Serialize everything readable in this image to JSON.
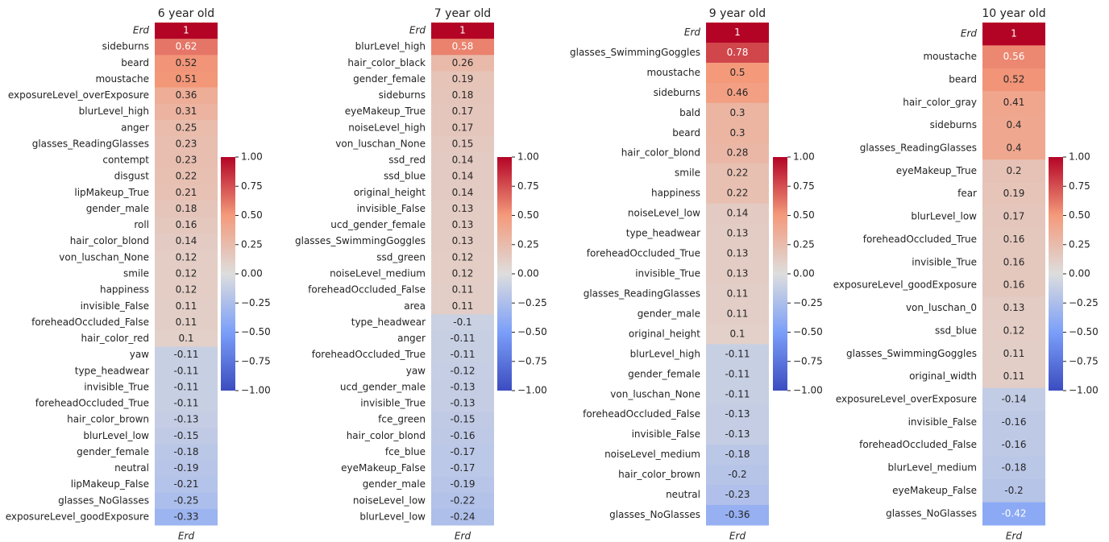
{
  "chart_data": [
    {
      "type": "heatmap",
      "title": "6 year old",
      "colormap": "coolwarm",
      "clim": [
        -1,
        1
      ],
      "cticks": [
        {
          "value": 1,
          "label": "1.00"
        },
        {
          "value": 0.75,
          "label": "0.75"
        },
        {
          "value": 0.5,
          "label": "0.50"
        },
        {
          "value": 0.25,
          "label": "0.25"
        },
        {
          "value": 0,
          "label": "0.00"
        },
        {
          "value": -0.25,
          "label": "−0.25"
        },
        {
          "value": -0.5,
          "label": "−0.50"
        },
        {
          "value": -0.75,
          "label": "−0.75"
        },
        {
          "value": -1,
          "label": "−1.00"
        }
      ],
      "columns": [
        "Erd"
      ],
      "rows": [
        "Erd",
        "sideburns",
        "beard",
        "moustache",
        "exposureLevel_overExposure",
        "blurLevel_high",
        "anger",
        "glasses_ReadingGlasses",
        "contempt",
        "disgust",
        "lipMakeup_True",
        "gender_male",
        "roll",
        "hair_color_blond",
        "von_luschan_None",
        "smile",
        "happiness",
        "invisible_False",
        "foreheadOccluded_False",
        "hair_color_red",
        "yaw",
        "type_headwear",
        "invisible_True",
        "foreheadOccluded_True",
        "hair_color_brown",
        "blurLevel_low",
        "gender_female",
        "neutral",
        "lipMakeup_False",
        "glasses_NoGlasses",
        "exposureLevel_goodExposure"
      ],
      "values": [
        1,
        0.62,
        0.52,
        0.51,
        0.36,
        0.31,
        0.25,
        0.23,
        0.23,
        0.22,
        0.21,
        0.18,
        0.16,
        0.14,
        0.12,
        0.12,
        0.12,
        0.11,
        0.11,
        0.1,
        -0.11,
        -0.11,
        -0.11,
        -0.11,
        -0.13,
        -0.15,
        -0.18,
        -0.19,
        -0.21,
        -0.25,
        -0.33
      ]
    },
    {
      "type": "heatmap",
      "title": "7 year old",
      "colormap": "coolwarm",
      "clim": [
        -1,
        1
      ],
      "cticks": [
        {
          "value": 1,
          "label": "1.00"
        },
        {
          "value": 0.75,
          "label": "0.75"
        },
        {
          "value": 0.5,
          "label": "0.50"
        },
        {
          "value": 0.25,
          "label": "0.25"
        },
        {
          "value": 0,
          "label": "0.00"
        },
        {
          "value": -0.25,
          "label": "−0.25"
        },
        {
          "value": -0.5,
          "label": "−0.50"
        },
        {
          "value": -0.75,
          "label": "−0.75"
        },
        {
          "value": -1,
          "label": "−1.00"
        }
      ],
      "columns": [
        "Erd"
      ],
      "rows": [
        "Erd",
        "blurLevel_high",
        "hair_color_black",
        "gender_female",
        "sideburns",
        "eyeMakeup_True",
        "noiseLevel_high",
        "von_luschan_None",
        "ssd_red",
        "ssd_blue",
        "original_height",
        "invisible_False",
        "ucd_gender_female",
        "glasses_SwimmingGoggles",
        "ssd_green",
        "noiseLevel_medium",
        "foreheadOccluded_False",
        "area",
        "type_headwear",
        "anger",
        "foreheadOccluded_True",
        "yaw",
        "ucd_gender_male",
        "invisible_True",
        "fce_green",
        "hair_color_blond",
        "fce_blue",
        "eyeMakeup_False",
        "gender_male",
        "noiseLevel_low",
        "blurLevel_low"
      ],
      "values": [
        1,
        0.58,
        0.26,
        0.19,
        0.18,
        0.17,
        0.17,
        0.15,
        0.14,
        0.14,
        0.14,
        0.13,
        0.13,
        0.13,
        0.12,
        0.12,
        0.11,
        0.11,
        -0.1,
        -0.11,
        -0.11,
        -0.12,
        -0.13,
        -0.13,
        -0.15,
        -0.16,
        -0.17,
        -0.17,
        -0.19,
        -0.22,
        -0.24
      ]
    },
    {
      "type": "heatmap",
      "title": "9 year old",
      "colormap": "coolwarm",
      "clim": [
        -1,
        1
      ],
      "cticks": [
        {
          "value": 1,
          "label": "1.00"
        },
        {
          "value": 0.75,
          "label": "0.75"
        },
        {
          "value": 0.5,
          "label": "0.50"
        },
        {
          "value": 0.25,
          "label": "0.25"
        },
        {
          "value": 0,
          "label": "0.00"
        },
        {
          "value": -0.25,
          "label": "−0.25"
        },
        {
          "value": -0.5,
          "label": "−0.50"
        },
        {
          "value": -0.75,
          "label": "−0.75"
        },
        {
          "value": -1,
          "label": "−1.00"
        }
      ],
      "columns": [
        "Erd"
      ],
      "rows": [
        "Erd",
        "glasses_SwimmingGoggles",
        "moustache",
        "sideburns",
        "bald",
        "beard",
        "hair_color_blond",
        "smile",
        "happiness",
        "noiseLevel_low",
        "type_headwear",
        "foreheadOccluded_True",
        "invisible_True",
        "glasses_ReadingGlasses",
        "gender_male",
        "original_height",
        "blurLevel_high",
        "gender_female",
        "von_luschan_None",
        "foreheadOccluded_False",
        "invisible_False",
        "noiseLevel_medium",
        "hair_color_brown",
        "neutral",
        "glasses_NoGlasses"
      ],
      "values": [
        1,
        0.78,
        0.5,
        0.46,
        0.3,
        0.3,
        0.28,
        0.22,
        0.22,
        0.14,
        0.13,
        0.13,
        0.13,
        0.11,
        0.11,
        0.1,
        -0.11,
        -0.11,
        -0.11,
        -0.13,
        -0.13,
        -0.18,
        -0.2,
        -0.23,
        -0.36
      ]
    },
    {
      "type": "heatmap",
      "title": "10 year old",
      "colormap": "coolwarm",
      "clim": [
        -1,
        1
      ],
      "cticks": [
        {
          "value": 1,
          "label": "1.00"
        },
        {
          "value": 0.75,
          "label": "0.75"
        },
        {
          "value": 0.5,
          "label": "0.50"
        },
        {
          "value": 0.25,
          "label": "0.25"
        },
        {
          "value": 0,
          "label": "0.00"
        },
        {
          "value": -0.25,
          "label": "−0.25"
        },
        {
          "value": -0.5,
          "label": "−0.50"
        },
        {
          "value": -0.75,
          "label": "−0.75"
        },
        {
          "value": -1,
          "label": "−1.00"
        }
      ],
      "columns": [
        "Erd"
      ],
      "rows": [
        "Erd",
        "moustache",
        "beard",
        "hair_color_gray",
        "sideburns",
        "glasses_ReadingGlasses",
        "eyeMakeup_True",
        "fear",
        "blurLevel_low",
        "foreheadOccluded_True",
        "invisible_True",
        "exposureLevel_goodExposure",
        "von_luschan_0",
        "ssd_blue",
        "glasses_SwimmingGoggles",
        "original_width",
        "exposureLevel_overExposure",
        "invisible_False",
        "foreheadOccluded_False",
        "blurLevel_medium",
        "eyeMakeup_False",
        "glasses_NoGlasses"
      ],
      "values": [
        1,
        0.56,
        0.52,
        0.41,
        0.4,
        0.4,
        0.2,
        0.19,
        0.17,
        0.16,
        0.16,
        0.16,
        0.13,
        0.12,
        0.11,
        0.11,
        -0.14,
        -0.16,
        -0.16,
        -0.18,
        -0.2,
        -0.42
      ]
    }
  ]
}
